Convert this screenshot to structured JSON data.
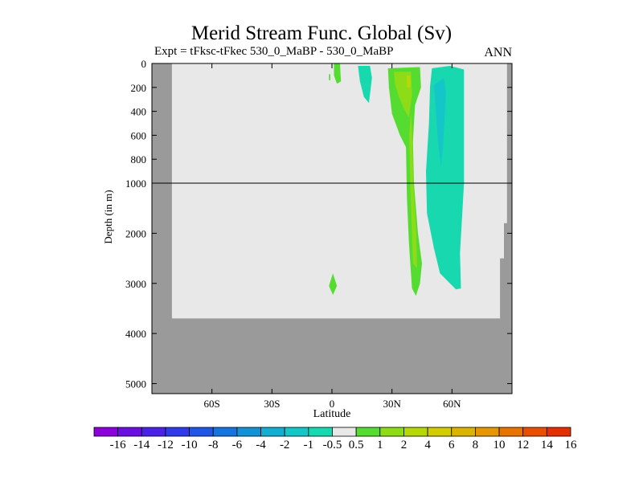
{
  "chart_data": {
    "type": "contour",
    "title": "Merid Stream Func. Global (Sv)",
    "subtitle": "Expt = tFksc-tFkec  530_0_MaBP - 530_0_MaBP",
    "season": "ANN",
    "xlabel": "Latitude",
    "ylabel": "Depth (in m)",
    "xlim": [
      -90,
      90
    ],
    "x_ticks": [
      {
        "v": -60,
        "label": "60S"
      },
      {
        "v": -30,
        "label": "30S"
      },
      {
        "v": 0,
        "label": "0"
      },
      {
        "v": 30,
        "label": "30N"
      },
      {
        "v": 60,
        "label": "60N"
      }
    ],
    "y_upper": {
      "range": [
        0,
        1000
      ],
      "ticks": [
        0,
        200,
        400,
        600,
        800,
        1000
      ]
    },
    "y_lower": {
      "range": [
        1000,
        5200
      ],
      "ticks": [
        2000,
        3000,
        4000,
        5000
      ]
    },
    "ocean_floor_depth": 3700,
    "contour_levels": [
      "-16",
      "-14",
      "-12",
      "-10",
      "-8",
      "-6",
      "-4",
      "-2",
      "-1",
      "-0.5",
      "0.5",
      "1",
      "2",
      "4",
      "6",
      "8",
      "10",
      "12",
      "14",
      "16"
    ],
    "colorbar_colors": [
      "#8c00dc",
      "#6a0fe0",
      "#4a22e6",
      "#2f3ae8",
      "#1f56e6",
      "#1674de",
      "#1192d6",
      "#11aed2",
      "#14c6c8",
      "#18d8b0",
      "#e8e8e8",
      "#55dc30",
      "#8edc18",
      "#b6d808",
      "#d2cc00",
      "#dcb400",
      "#e69600",
      "#e87400",
      "#e85000",
      "#e43000"
    ],
    "plot_background": "#e8e8e8",
    "land_color": "#9a9a9a"
  }
}
